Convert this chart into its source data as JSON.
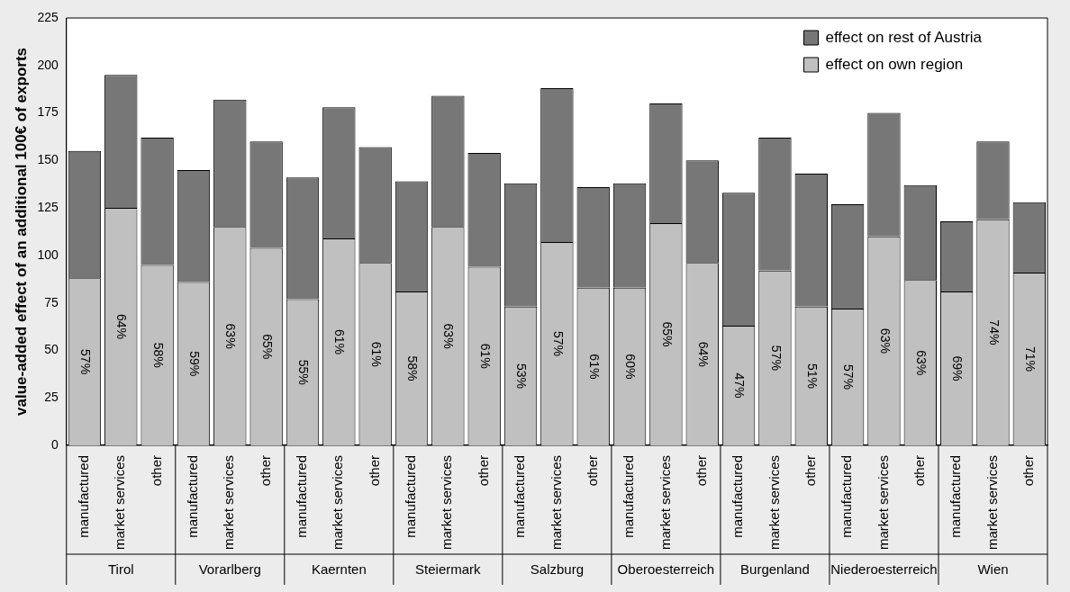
{
  "chart_data": {
    "type": "bar",
    "stacked": true,
    "ylabel": "value-added effect of an additional 100€ of exports",
    "categories": [
      "manufactured",
      "market services",
      "other",
      "manufactured",
      "market services",
      "other",
      "manufactured",
      "market services",
      "other",
      "manufactured",
      "market services",
      "other",
      "manufactured",
      "market services",
      "other",
      "manufactured",
      "market services",
      "other",
      "manufactured",
      "market services",
      "other",
      "manufactured",
      "market services",
      "other",
      "manufactured",
      "market services",
      "other"
    ],
    "annotations": [
      "Tirol",
      "Vorarlberg",
      "Kaernten",
      "Steiermark",
      "Salzburg",
      "Oberoesterreich",
      "Burgenland",
      "Niederoesterreich",
      "Wien",
      "57%",
      "64%",
      "58%",
      "59%",
      "63%",
      "65%",
      "55%",
      "61%",
      "61%",
      "58%",
      "63%",
      "61%",
      "53%",
      "57%",
      "61%",
      "60%",
      "65%",
      "64%",
      "47%",
      "57%",
      "51%",
      "57%",
      "63%",
      "63%",
      "69%",
      "74%",
      "71%"
    ],
    "series": [
      {
        "name": "effect on own region",
        "color": "#c0c0c0",
        "values": [
          88,
          125,
          95,
          86,
          115,
          104,
          77,
          109,
          96,
          81,
          115,
          94,
          73,
          107,
          83,
          83,
          117,
          96,
          63,
          92,
          73,
          72,
          110,
          87,
          81,
          119,
          91
        ]
      },
      {
        "name": "effect on rest of Austria",
        "color": "#777777",
        "values": [
          67,
          70,
          67,
          59,
          67,
          56,
          64,
          69,
          61,
          58,
          69,
          60,
          65,
          81,
          53,
          55,
          63,
          54,
          70,
          70,
          70,
          55,
          65,
          50,
          37,
          41,
          37
        ]
      }
    ],
    "ylim": [
      0,
      225
    ],
    "yticks": [
      0,
      25,
      50,
      75,
      100,
      125,
      150,
      175,
      200,
      225
    ],
    "grid": false,
    "legend": "top right"
  }
}
